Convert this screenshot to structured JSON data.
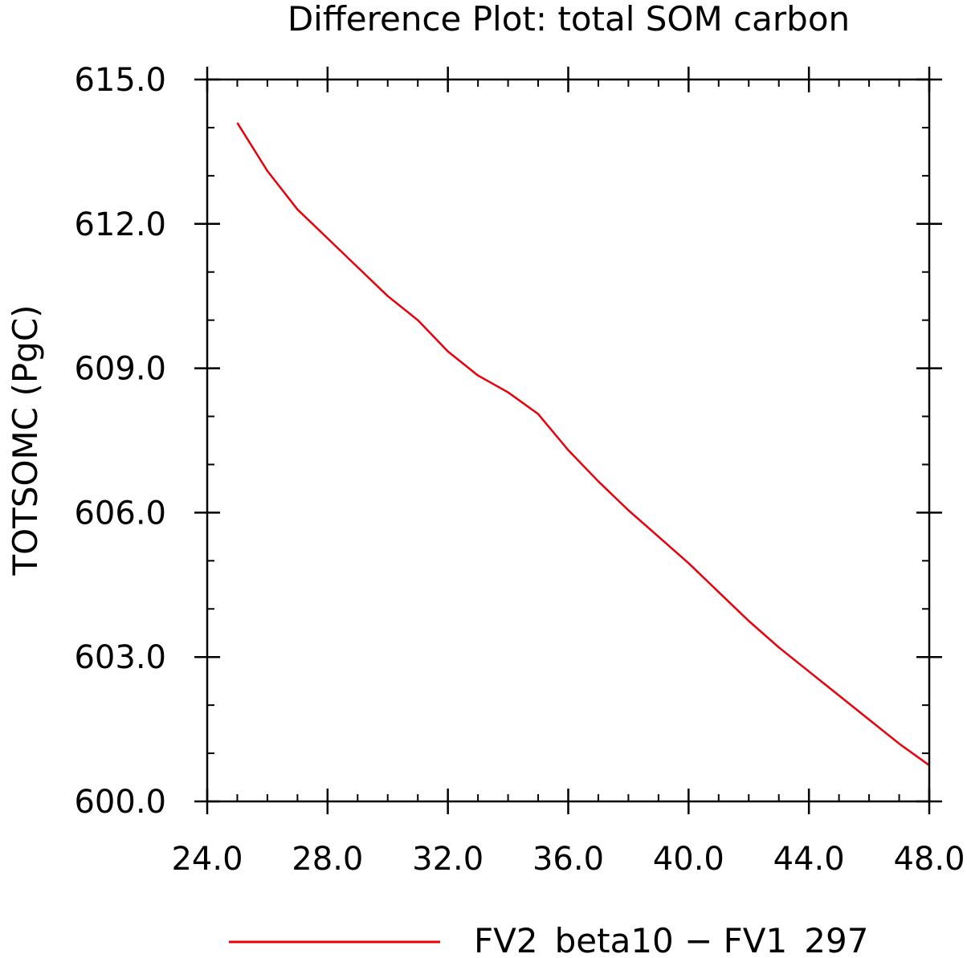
{
  "chart_data": {
    "type": "line",
    "title": "Difference Plot: total SOM carbon",
    "xlabel": "",
    "ylabel": "TOTSOMC  (PgC)",
    "xlim": [
      24,
      48
    ],
    "ylim": [
      600,
      615
    ],
    "x_ticks": [
      24,
      28,
      32,
      36,
      40,
      44,
      48
    ],
    "x_tick_labels": [
      "24.0",
      "28.0",
      "32.0",
      "36.0",
      "40.0",
      "44.0",
      "48.0"
    ],
    "y_ticks": [
      600,
      603,
      606,
      609,
      612,
      615
    ],
    "y_tick_labels": [
      "600.0",
      "603.0",
      "606.0",
      "609.0",
      "612.0",
      "615.0"
    ],
    "x_minor_step": 1,
    "y_minor_step": 1,
    "grid": false,
    "legend_position": "bottom",
    "series": [
      {
        "name": "FV2_beta10 − FV1_297",
        "color": "#e8000b",
        "x": [
          25,
          26,
          27,
          28,
          29,
          30,
          31,
          32,
          33,
          34,
          35,
          36,
          37,
          38,
          39,
          40,
          41,
          42,
          43,
          44,
          45,
          46,
          47,
          48
        ],
        "y": [
          614.1,
          613.1,
          612.3,
          611.7,
          611.1,
          610.5,
          610.0,
          609.35,
          608.85,
          608.5,
          608.05,
          607.3,
          606.65,
          606.05,
          605.5,
          604.95,
          604.35,
          603.75,
          603.2,
          602.7,
          602.2,
          601.7,
          601.2,
          600.75
        ]
      }
    ]
  }
}
